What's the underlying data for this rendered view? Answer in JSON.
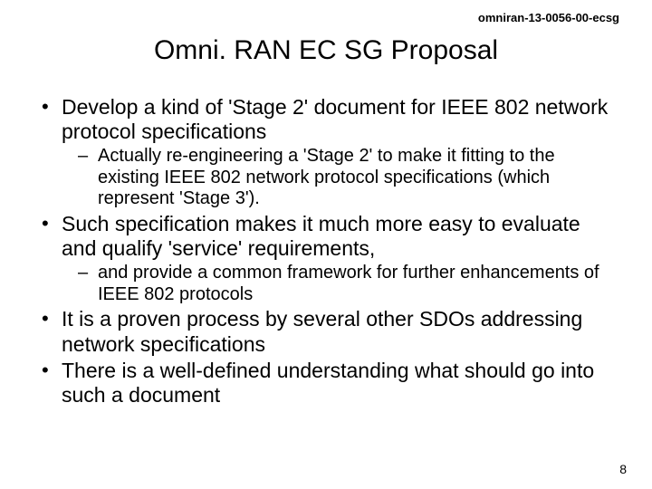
{
  "header": {
    "doc_id": "omniran-13-0056-00-ecsg"
  },
  "title": "Omni. RAN EC SG Proposal",
  "bullets": [
    {
      "text": "Develop a kind of 'Stage 2' document for IEEE 802 network protocol specifications",
      "sub": [
        "Actually re-engineering a 'Stage 2' to make it fitting to the existing IEEE 802 network protocol specifications (which represent 'Stage 3')."
      ]
    },
    {
      "text": "Such specification makes it much more easy to evaluate and qualify 'service' requirements,",
      "sub": [
        "and provide a common framework for further enhancements of IEEE 802 protocols"
      ]
    },
    {
      "text": "It is a proven process by several other SDOs addressing network specifications",
      "sub": []
    },
    {
      "text": "There is a well-defined understanding what should go into such a document",
      "sub": []
    }
  ],
  "page_number": "8",
  "style": {
    "background_color": "#ffffff",
    "text_color": "#000000",
    "title_fontsize": 30,
    "body_fontsize": 23,
    "sub_fontsize": 20,
    "header_fontsize": 13,
    "pagenum_fontsize": 14,
    "font_family": "Arial"
  }
}
